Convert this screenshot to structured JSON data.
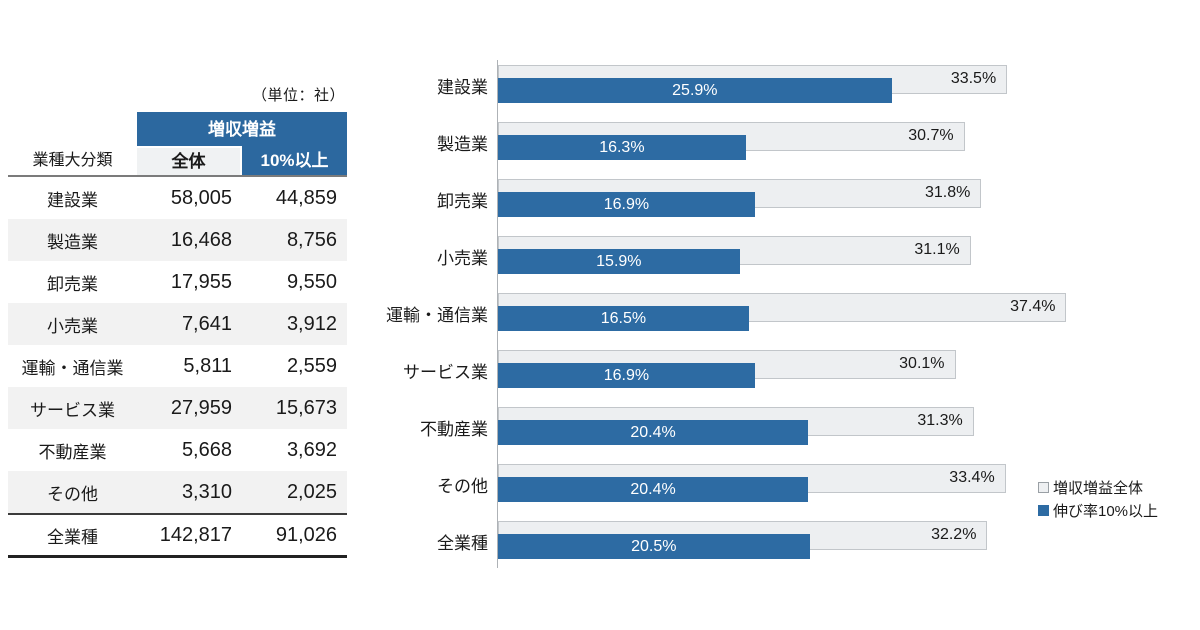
{
  "colors": {
    "bar_blue": "#2d6ba3",
    "header_blue": "#2c689f",
    "bar_gray_fill": "#edeff1",
    "bar_gray_border": "#c2c6ca",
    "stripe_row": "#f2f2f2",
    "text": "#1a1a1a"
  },
  "table": {
    "unit_note": "（単位：社）",
    "corner_label": "業種大分類",
    "group_header": "増収増益",
    "col_headers": [
      "全体",
      "10%以上"
    ],
    "rows": [
      {
        "label": "建設業",
        "total": "58,005",
        "over10": "44,859",
        "is_total": false
      },
      {
        "label": "製造業",
        "total": "16,468",
        "over10": "8,756",
        "is_total": false
      },
      {
        "label": "卸売業",
        "total": "17,955",
        "over10": "9,550",
        "is_total": false
      },
      {
        "label": "小売業",
        "total": "7,641",
        "over10": "3,912",
        "is_total": false
      },
      {
        "label": "運輸・通信業",
        "total": "5,811",
        "over10": "2,559",
        "is_total": false
      },
      {
        "label": "サービス業",
        "total": "27,959",
        "over10": "15,673",
        "is_total": false
      },
      {
        "label": "不動産業",
        "total": "5,668",
        "over10": "3,692",
        "is_total": false
      },
      {
        "label": "その他",
        "total": "3,310",
        "over10": "2,025",
        "is_total": false
      },
      {
        "label": "全業種",
        "total": "142,817",
        "over10": "91,026",
        "is_total": true
      }
    ]
  },
  "chart_data": {
    "type": "bar",
    "orientation": "horizontal",
    "categories": [
      "建設業",
      "製造業",
      "卸売業",
      "小売業",
      "運輸・通信業",
      "サービス業",
      "不動産業",
      "その他",
      "全業種"
    ],
    "series": [
      {
        "name": "増収増益全体",
        "color_key": "gray",
        "label_position": "inside-end",
        "values": [
          33.5,
          30.7,
          31.8,
          31.1,
          37.4,
          30.1,
          31.3,
          33.4,
          32.2
        ]
      },
      {
        "name": "伸び率10%以上",
        "color_key": "blue",
        "label_position": "center",
        "values": [
          25.9,
          16.3,
          16.9,
          15.9,
          16.5,
          16.9,
          20.4,
          20.4,
          20.5
        ]
      }
    ],
    "value_suffix": "%",
    "value_decimals": 1,
    "xlim": [
      0,
      40
    ],
    "grid": false,
    "legend_position": "right-bottom"
  }
}
